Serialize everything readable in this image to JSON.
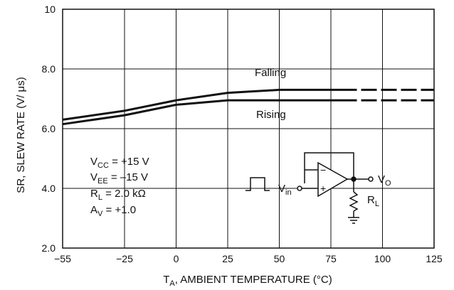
{
  "chart_data": {
    "type": "line",
    "xlabel_main": "T",
    "xlabel_sub": "A",
    "xlabel_rest": ", AMBIENT TEMPERATURE (°C)",
    "ylabel": "SR, SLEW RATE (V/ μs)",
    "xlim": [
      -55,
      125
    ],
    "ylim": [
      2.0,
      10
    ],
    "x_ticks": [
      "−55",
      "−25",
      "0",
      "25",
      "50",
      "75",
      "100",
      "125"
    ],
    "x_tick_values": [
      -55,
      -25,
      0,
      25,
      50,
      75,
      100,
      125
    ],
    "y_ticks": [
      "2.0",
      "4.0",
      "6.0",
      "8.0",
      "10"
    ],
    "y_tick_values": [
      2,
      4,
      6,
      8,
      10
    ],
    "grid": true,
    "series": [
      {
        "name": "Falling",
        "x": [
          -55,
          -25,
          0,
          25,
          50,
          80,
          125
        ],
        "y": [
          6.3,
          6.6,
          6.95,
          7.2,
          7.3,
          7.3,
          7.3
        ],
        "dashed_from_x": 80
      },
      {
        "name": "Rising",
        "x": [
          -55,
          -25,
          0,
          25,
          50,
          80,
          125
        ],
        "y": [
          6.15,
          6.45,
          6.8,
          6.95,
          6.95,
          6.95,
          6.95
        ],
        "dashed_from_x": 80
      }
    ],
    "conditions": [
      {
        "main": "V",
        "sub": "CC",
        "rest": " =  +15 V"
      },
      {
        "main": "V",
        "sub": "EE",
        "rest": " = –15 V"
      },
      {
        "main": "R",
        "sub": "L",
        "rest": " = 2.0 kΩ"
      },
      {
        "main": "A",
        "sub": "V",
        "rest": " = +1.0"
      }
    ],
    "circuit": {
      "input_main": "V",
      "input_sub": "in",
      "output_main": "V",
      "output_sub": "O",
      "load_main": "R",
      "load_sub": "L",
      "minus": "−",
      "plus": "+"
    },
    "colors": {
      "line": "#111111",
      "grid": "#111111"
    }
  }
}
